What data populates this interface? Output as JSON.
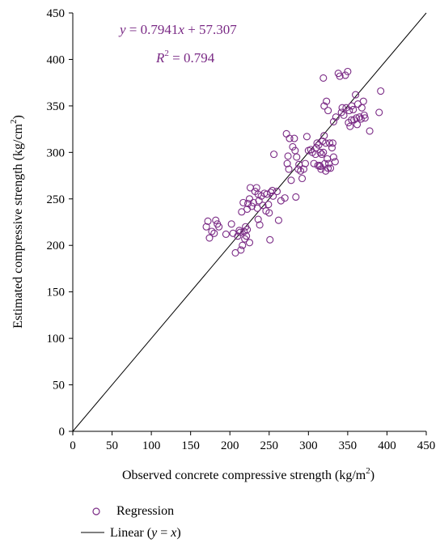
{
  "chart_data": {
    "type": "scatter",
    "xlabel": "Observed concrete compressive strength (kg/m",
    "xlabel_sup": "2",
    "xlabel_end": ")",
    "ylabel": "Estimated compressive strength (kg/cm",
    "ylabel_sup": "2",
    "ylabel_end": ")",
    "xlim": [
      0,
      450
    ],
    "ylim": [
      0,
      450
    ],
    "xticks": [
      "0",
      "50",
      "100",
      "150",
      "200",
      "250",
      "300",
      "350",
      "400",
      "450"
    ],
    "yticks": [
      "0",
      "50",
      "100",
      "150",
      "200",
      "250",
      "300",
      "350",
      "400",
      "450"
    ],
    "grid": false,
    "legend_placement": "bottom-left",
    "equation": {
      "y": "y",
      "eq_text": " = 0.7941",
      "x": "x",
      "rest": " + 57.307",
      "r": "R",
      "r_sup": "2",
      "r_rest": " = 0.794"
    },
    "colors": {
      "marker": "#7a2a85",
      "line": "#000000"
    },
    "series": [
      {
        "name": "Regression",
        "marker": "open-circle",
        "points": [
          [
            170,
            220
          ],
          [
            172,
            226
          ],
          [
            174,
            208
          ],
          [
            177,
            215
          ],
          [
            180,
            213
          ],
          [
            182,
            227
          ],
          [
            184,
            223
          ],
          [
            186,
            220
          ],
          [
            195,
            212
          ],
          [
            202,
            223
          ],
          [
            204,
            213
          ],
          [
            207,
            192
          ],
          [
            210,
            210
          ],
          [
            212,
            216
          ],
          [
            213,
            214
          ],
          [
            214,
            195
          ],
          [
            215,
            236
          ],
          [
            216,
            200
          ],
          [
            217,
            246
          ],
          [
            218,
            215
          ],
          [
            219,
            207
          ],
          [
            220,
            220
          ],
          [
            221,
            210
          ],
          [
            222,
            217
          ],
          [
            222,
            239
          ],
          [
            223,
            245
          ],
          [
            225,
            250
          ],
          [
            225,
            203
          ],
          [
            226,
            262
          ],
          [
            228,
            242
          ],
          [
            230,
            246
          ],
          [
            232,
            258
          ],
          [
            234,
            262
          ],
          [
            235,
            240
          ],
          [
            236,
            228
          ],
          [
            236,
            255
          ],
          [
            237,
            248
          ],
          [
            238,
            222
          ],
          [
            240,
            253
          ],
          [
            242,
            243
          ],
          [
            244,
            256
          ],
          [
            246,
            237
          ],
          [
            247,
            255
          ],
          [
            249,
            244
          ],
          [
            250,
            235
          ],
          [
            251,
            206
          ],
          [
            252,
            257
          ],
          [
            254,
            259
          ],
          [
            255,
            253
          ],
          [
            256,
            298
          ],
          [
            260,
            258
          ],
          [
            262,
            227
          ],
          [
            265,
            248
          ],
          [
            270,
            251
          ],
          [
            272,
            320
          ],
          [
            273,
            288
          ],
          [
            274,
            296
          ],
          [
            275,
            282
          ],
          [
            276,
            315
          ],
          [
            278,
            270
          ],
          [
            280,
            306
          ],
          [
            282,
            315
          ],
          [
            283,
            302
          ],
          [
            284,
            252
          ],
          [
            285,
            295
          ],
          [
            287,
            282
          ],
          [
            288,
            287
          ],
          [
            290,
            280
          ],
          [
            292,
            272
          ],
          [
            294,
            282
          ],
          [
            296,
            288
          ],
          [
            298,
            317
          ],
          [
            300,
            302
          ],
          [
            303,
            303
          ],
          [
            305,
            300
          ],
          [
            307,
            288
          ],
          [
            309,
            298
          ],
          [
            310,
            305
          ],
          [
            311,
            310
          ],
          [
            312,
            286
          ],
          [
            313,
            308
          ],
          [
            314,
            286
          ],
          [
            315,
            285
          ],
          [
            315,
            300
          ],
          [
            316,
            282
          ],
          [
            317,
            298
          ],
          [
            318,
            312
          ],
          [
            319,
            300
          ],
          [
            319,
            380
          ],
          [
            320,
            350
          ],
          [
            320,
            318
          ],
          [
            321,
            288
          ],
          [
            322,
            280
          ],
          [
            322,
            310
          ],
          [
            323,
            355
          ],
          [
            324,
            293
          ],
          [
            325,
            345
          ],
          [
            325,
            283
          ],
          [
            326,
            288
          ],
          [
            327,
            310
          ],
          [
            328,
            283
          ],
          [
            330,
            305
          ],
          [
            331,
            310
          ],
          [
            332,
            333
          ],
          [
            332,
            295
          ],
          [
            334,
            290
          ],
          [
            335,
            338
          ],
          [
            338,
            385
          ],
          [
            340,
            382
          ],
          [
            342,
            343
          ],
          [
            343,
            348
          ],
          [
            345,
            340
          ],
          [
            347,
            383
          ],
          [
            348,
            348
          ],
          [
            350,
            387
          ],
          [
            351,
            332
          ],
          [
            352,
            345
          ],
          [
            353,
            328
          ],
          [
            355,
            335
          ],
          [
            355,
            350
          ],
          [
            357,
            346
          ],
          [
            358,
            335
          ],
          [
            360,
            362
          ],
          [
            361,
            337
          ],
          [
            362,
            330
          ],
          [
            363,
            352
          ],
          [
            365,
            338
          ],
          [
            367,
            336
          ],
          [
            368,
            348
          ],
          [
            370,
            355
          ],
          [
            371,
            340
          ],
          [
            372,
            337
          ],
          [
            378,
            323
          ],
          [
            390,
            343
          ],
          [
            392,
            366
          ]
        ]
      },
      {
        "name": "Linear (y = x)",
        "name_prefix": "Linear (",
        "name_y": "y",
        "name_mid": " = ",
        "name_x": "x",
        "name_suffix": ")",
        "line": [
          [
            0,
            0
          ],
          [
            450,
            450
          ]
        ]
      }
    ]
  }
}
